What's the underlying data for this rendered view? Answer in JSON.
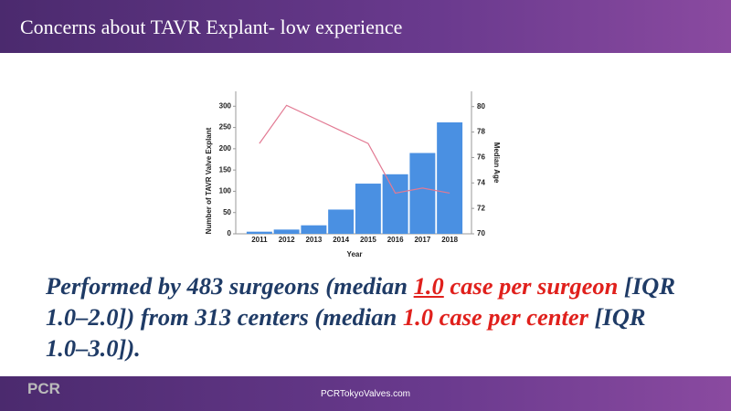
{
  "header": {
    "title": "Concerns about TAVR Explant- low experience"
  },
  "chart_data": {
    "type": "bar",
    "categories": [
      "2011",
      "2012",
      "2013",
      "2014",
      "2015",
      "2016",
      "2017",
      "2018"
    ],
    "x_label": "Year",
    "y_label": "Number of TAVR Valve Explant",
    "y2_label": "Median Age",
    "series": [
      {
        "name": "Number of TAVR Valve Explant",
        "type": "bar",
        "color": "#4a90e2",
        "values": [
          5,
          10,
          20,
          57,
          118,
          140,
          190,
          262
        ]
      },
      {
        "name": "Median Age",
        "type": "line",
        "axis": "y2",
        "color": "#e27a93",
        "values": [
          77.1,
          80.1,
          79.1,
          78.1,
          77.1,
          73.2,
          73.6,
          73.2
        ]
      }
    ],
    "ylim": [
      0,
      335
    ],
    "yticks": [
      0,
      50,
      100,
      150,
      200,
      250,
      300
    ],
    "y2lim": [
      70,
      81.2
    ],
    "y2ticks": [
      70,
      72,
      74,
      76,
      78,
      80
    ]
  },
  "body": {
    "segments": [
      "Performed by 483 surgeons (median ",
      "1.0",
      " case per surgeon",
      " [IQR 1.0–2.0]) from 313 centers (median ",
      "1.0 case per center",
      " [IQR 1.0–3.0])."
    ]
  },
  "footer": {
    "logo": "PCR",
    "site": "PCRTokyoValves.com"
  }
}
